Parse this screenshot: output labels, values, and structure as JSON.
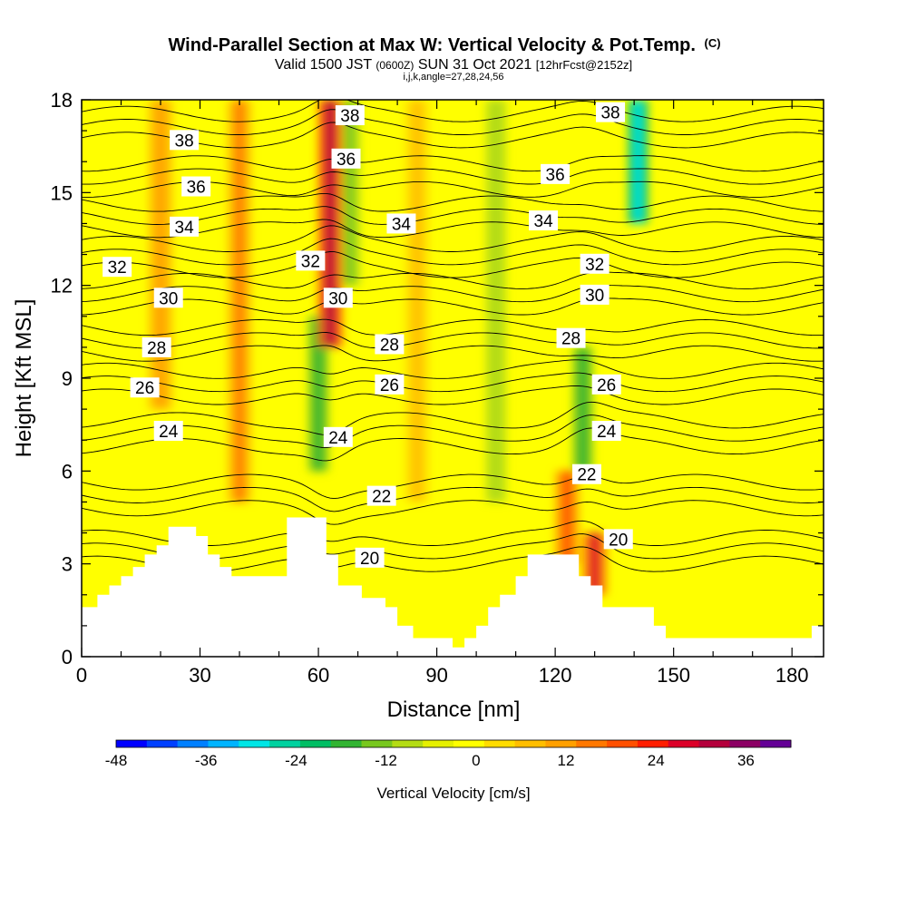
{
  "chart_data": {
    "type": "heatmap",
    "title_main": "Wind-Parallel Section at Max W: Vertical Velocity & Pot.Temp.",
    "title_mark": "(C)",
    "subtitle_pre": "Valid 1500 JST",
    "subtitle_z": "(0600Z)",
    "subtitle_date": "SUN 31 Oct 2021",
    "subtitle_fcst": "[12hrFcst@2152z]",
    "subtitle_idx": "i,j,k,angle=27,28,24,56",
    "xlabel": "Distance [nm]",
    "ylabel": "Height [Kft MSL]",
    "xlim": [
      0,
      188
    ],
    "ylim": [
      0,
      18
    ],
    "x_ticks": [
      0,
      30,
      60,
      90,
      120,
      150,
      180
    ],
    "y_ticks": [
      0,
      3,
      6,
      9,
      12,
      15,
      18
    ],
    "colorbar": {
      "label": "Vertical Velocity [cm/s]",
      "range": [
        -48,
        42
      ],
      "ticks": [
        -48,
        -36,
        -24,
        -12,
        0,
        12,
        24,
        36
      ],
      "colors": [
        "#0000ff",
        "#0040ff",
        "#0080ff",
        "#00b4ff",
        "#00e6e6",
        "#00d2a0",
        "#00be64",
        "#32b432",
        "#78c81e",
        "#b4dc14",
        "#e6f000",
        "#ffff00",
        "#ffdc00",
        "#ffbe00",
        "#ffa000",
        "#ff7800",
        "#ff5000",
        "#ff1e00",
        "#dc0028",
        "#b4003c",
        "#8c0064",
        "#640096"
      ]
    },
    "updraft_columns": [
      {
        "x": 40,
        "z_bottom": 5,
        "z_top": 18,
        "w": 14
      },
      {
        "x": 63,
        "z_bottom": 10,
        "z_top": 18,
        "w": 30
      },
      {
        "x": 20,
        "z_bottom": 8,
        "z_top": 18,
        "w": 12
      },
      {
        "x": 123,
        "z_bottom": 3,
        "z_top": 6,
        "w": 20
      },
      {
        "x": 130,
        "z_bottom": 2,
        "z_top": 4,
        "w": 28
      },
      {
        "x": 85,
        "z_bottom": 5,
        "z_top": 18,
        "w": 8
      }
    ],
    "downdraft_columns": [
      {
        "x": 141,
        "z_bottom": 14,
        "z_top": 18,
        "w": -22
      },
      {
        "x": 127,
        "z_bottom": 6,
        "z_top": 10,
        "w": -12
      },
      {
        "x": 60,
        "z_bottom": 6,
        "z_top": 11,
        "w": -12
      },
      {
        "x": 68,
        "z_bottom": 12,
        "z_top": 18,
        "w": -10
      },
      {
        "x": 105,
        "z_bottom": 5,
        "z_top": 18,
        "w": -8
      },
      {
        "x": 40,
        "z_bottom": 12,
        "z_top": 18,
        "w": -6
      }
    ],
    "theta_levels": [
      20,
      22,
      24,
      26,
      28,
      30,
      32,
      34,
      36,
      38
    ],
    "theta_labels": [
      {
        "text": "38",
        "x": 26,
        "z": 16.7
      },
      {
        "text": "36",
        "x": 29,
        "z": 15.2
      },
      {
        "text": "34",
        "x": 26,
        "z": 13.9
      },
      {
        "text": "32",
        "x": 9,
        "z": 12.6
      },
      {
        "text": "30",
        "x": 22,
        "z": 11.6
      },
      {
        "text": "28",
        "x": 19,
        "z": 10.0
      },
      {
        "text": "26",
        "x": 16,
        "z": 8.7
      },
      {
        "text": "24",
        "x": 22,
        "z": 7.3
      },
      {
        "text": "38",
        "x": 68,
        "z": 17.5
      },
      {
        "text": "36",
        "x": 67,
        "z": 16.1
      },
      {
        "text": "32",
        "x": 58,
        "z": 12.8
      },
      {
        "text": "30",
        "x": 65,
        "z": 11.6
      },
      {
        "text": "24",
        "x": 65,
        "z": 7.1
      },
      {
        "text": "22",
        "x": 76,
        "z": 5.2
      },
      {
        "text": "20",
        "x": 73,
        "z": 3.2
      },
      {
        "text": "34",
        "x": 81,
        "z": 14.0
      },
      {
        "text": "28",
        "x": 78,
        "z": 10.1
      },
      {
        "text": "26",
        "x": 78,
        "z": 8.8
      },
      {
        "text": "38",
        "x": 134,
        "z": 17.6
      },
      {
        "text": "36",
        "x": 120,
        "z": 15.6
      },
      {
        "text": "34",
        "x": 117,
        "z": 14.1
      },
      {
        "text": "32",
        "x": 130,
        "z": 12.7
      },
      {
        "text": "30",
        "x": 130,
        "z": 11.7
      },
      {
        "text": "28",
        "x": 124,
        "z": 10.3
      },
      {
        "text": "26",
        "x": 133,
        "z": 8.8
      },
      {
        "text": "24",
        "x": 133,
        "z": 7.3
      },
      {
        "text": "22",
        "x": 128,
        "z": 5.9
      },
      {
        "text": "20",
        "x": 136,
        "z": 3.8
      }
    ],
    "terrain": [
      {
        "x": 0,
        "z": 1.6
      },
      {
        "x": 4,
        "z": 1.6
      },
      {
        "x": 4,
        "z": 2.0
      },
      {
        "x": 7,
        "z": 2.0
      },
      {
        "x": 7,
        "z": 2.3
      },
      {
        "x": 10,
        "z": 2.3
      },
      {
        "x": 10,
        "z": 2.6
      },
      {
        "x": 13,
        "z": 2.6
      },
      {
        "x": 13,
        "z": 2.9
      },
      {
        "x": 16,
        "z": 2.9
      },
      {
        "x": 16,
        "z": 3.3
      },
      {
        "x": 19,
        "z": 3.3
      },
      {
        "x": 19,
        "z": 3.6
      },
      {
        "x": 22,
        "z": 3.6
      },
      {
        "x": 22,
        "z": 4.2
      },
      {
        "x": 29,
        "z": 4.2
      },
      {
        "x": 29,
        "z": 3.9
      },
      {
        "x": 32,
        "z": 3.9
      },
      {
        "x": 32,
        "z": 3.3
      },
      {
        "x": 35,
        "z": 3.3
      },
      {
        "x": 35,
        "z": 2.9
      },
      {
        "x": 38,
        "z": 2.9
      },
      {
        "x": 38,
        "z": 2.6
      },
      {
        "x": 52,
        "z": 2.6
      },
      {
        "x": 52,
        "z": 4.5
      },
      {
        "x": 62,
        "z": 4.5
      },
      {
        "x": 62,
        "z": 3.3
      },
      {
        "x": 65,
        "z": 3.3
      },
      {
        "x": 65,
        "z": 2.3
      },
      {
        "x": 71,
        "z": 2.3
      },
      {
        "x": 71,
        "z": 1.9
      },
      {
        "x": 77,
        "z": 1.9
      },
      {
        "x": 77,
        "z": 1.6
      },
      {
        "x": 80,
        "z": 1.6
      },
      {
        "x": 80,
        "z": 1.0
      },
      {
        "x": 84,
        "z": 1.0
      },
      {
        "x": 84,
        "z": 0.6
      },
      {
        "x": 90,
        "z": 0.6
      },
      {
        "x": 90,
        "z": 0.6
      },
      {
        "x": 94,
        "z": 0.6
      },
      {
        "x": 94,
        "z": 0.3
      },
      {
        "x": 97,
        "z": 0.3
      },
      {
        "x": 97,
        "z": 0.6
      },
      {
        "x": 100,
        "z": 0.6
      },
      {
        "x": 100,
        "z": 1.0
      },
      {
        "x": 103,
        "z": 1.0
      },
      {
        "x": 103,
        "z": 1.6
      },
      {
        "x": 106,
        "z": 1.6
      },
      {
        "x": 106,
        "z": 2.0
      },
      {
        "x": 110,
        "z": 2.0
      },
      {
        "x": 110,
        "z": 2.6
      },
      {
        "x": 113,
        "z": 2.6
      },
      {
        "x": 113,
        "z": 3.3
      },
      {
        "x": 126,
        "z": 3.3
      },
      {
        "x": 126,
        "z": 2.6
      },
      {
        "x": 129,
        "z": 2.6
      },
      {
        "x": 129,
        "z": 2.3
      },
      {
        "x": 132,
        "z": 2.3
      },
      {
        "x": 132,
        "z": 1.6
      },
      {
        "x": 145,
        "z": 1.6
      },
      {
        "x": 145,
        "z": 1.0
      },
      {
        "x": 148,
        "z": 1.0
      },
      {
        "x": 148,
        "z": 0.6
      },
      {
        "x": 167,
        "z": 0.6
      },
      {
        "x": 185,
        "z": 0.6
      },
      {
        "x": 185,
        "z": 1.0
      },
      {
        "x": 188,
        "z": 1.0
      }
    ]
  }
}
